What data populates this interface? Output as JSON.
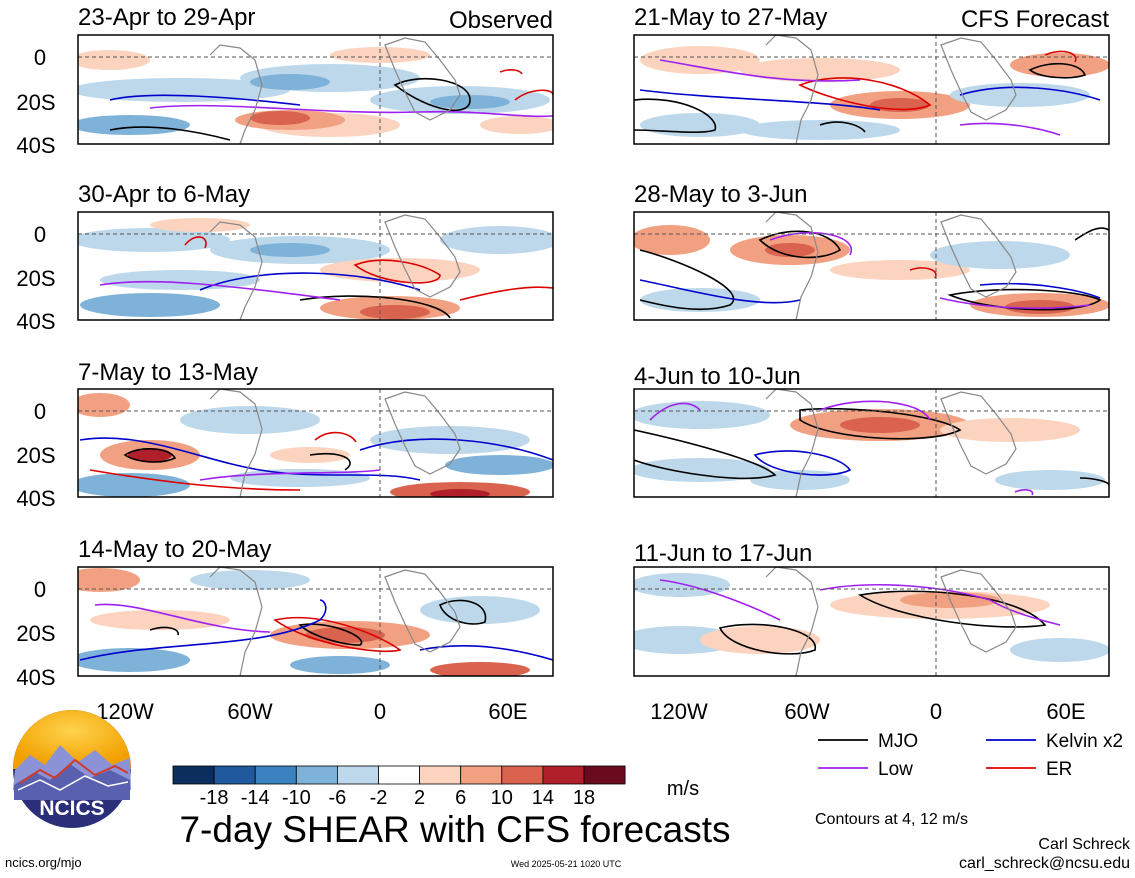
{
  "header": {
    "observed_label": "Observed",
    "forecast_label": "CFS Forecast"
  },
  "panels": [
    {
      "title": "23-Apr to 29-Apr",
      "group": "observed"
    },
    {
      "title": "30-Apr to 6-May",
      "group": "observed"
    },
    {
      "title": "7-May to 13-May",
      "group": "observed"
    },
    {
      "title": "14-May to 20-May",
      "group": "observed"
    },
    {
      "title": "21-May to 27-May",
      "group": "forecast"
    },
    {
      "title": "28-May to 3-Jun",
      "group": "forecast"
    },
    {
      "title": "4-Jun to 10-Jun",
      "group": "forecast"
    },
    {
      "title": "11-Jun to 17-Jun",
      "group": "forecast"
    }
  ],
  "chart_data": {
    "type": "heatmap",
    "title": "7-day SHEAR with CFS forecasts",
    "x_ticks": [
      "120W",
      "60W",
      "0",
      "60E"
    ],
    "y_ticks": [
      "0",
      "20S",
      "40S"
    ],
    "colorbar": {
      "unit": "m/s",
      "labels": [
        "-18",
        "-14",
        "-10",
        "-6",
        "-2",
        "2",
        "6",
        "10",
        "14",
        "18"
      ],
      "colors": [
        "#0b2e5c",
        "#1f5a9f",
        "#3b83c0",
        "#7fb2d8",
        "#bcd8ea",
        "#ffffff",
        "#fbd3be",
        "#f1a181",
        "#d9634e",
        "#b11f2b",
        "#6a0a1e"
      ]
    },
    "contours": {
      "levels_text": "Contours at 4, 12 m/s",
      "series": [
        {
          "name": "MJO",
          "color": "#000000"
        },
        {
          "name": "Low",
          "color": "#a020f0"
        },
        {
          "name": "Kelvin x2",
          "color": "#0000cd"
        },
        {
          "name": "ER",
          "color": "#dd0000"
        }
      ]
    }
  },
  "footer": {
    "logo_text": "NCICS",
    "url": "ncics.org/mjo",
    "timestamp": "Wed 2025-05-21 1020 UTC",
    "author": "Carl Schreck",
    "email": "carl_schreck@ncsu.edu"
  }
}
